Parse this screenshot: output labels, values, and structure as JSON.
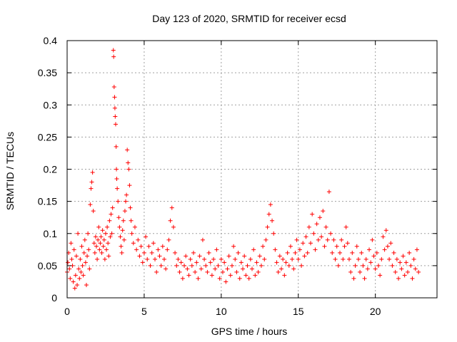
{
  "chart_data": {
    "type": "scatter",
    "title": "Day 123 of 2020, SRMTID for receiver ecsd",
    "xlabel": "GPS time / hours",
    "ylabel": "SRMTID / TECUs",
    "xlim": [
      0,
      24
    ],
    "ylim": [
      0,
      0.4
    ],
    "x_ticks": [
      0,
      5,
      10,
      15,
      20
    ],
    "x_tick_labels": [
      "0",
      "5",
      "10",
      "15",
      "20"
    ],
    "y_ticks": [
      0,
      0.05,
      0.1,
      0.15,
      0.2,
      0.25,
      0.3,
      0.35,
      0.4
    ],
    "y_tick_labels": [
      "0",
      "0.05",
      "0.1",
      "0.15",
      "0.2",
      "0.25",
      "0.3",
      "0.35",
      "0.4"
    ],
    "grid": true,
    "marker": "+",
    "series": [
      {
        "name": "SRMTID",
        "color": "#ff0000",
        "points": [
          [
            0.0,
            0.04
          ],
          [
            0.05,
            0.055
          ],
          [
            0.1,
            0.07
          ],
          [
            0.15,
            0.045
          ],
          [
            0.2,
            0.03
          ],
          [
            0.25,
            0.085
          ],
          [
            0.3,
            0.06
          ],
          [
            0.35,
            0.05
          ],
          [
            0.4,
            0.025
          ],
          [
            0.45,
            0.075
          ],
          [
            0.5,
            0.015
          ],
          [
            0.55,
            0.035
          ],
          [
            0.6,
            0.065
          ],
          [
            0.65,
            0.02
          ],
          [
            0.7,
            0.1
          ],
          [
            0.75,
            0.045
          ],
          [
            0.8,
            0.03
          ],
          [
            0.85,
            0.06
          ],
          [
            0.9,
            0.04
          ],
          [
            0.95,
            0.08
          ],
          [
            1.0,
            0.05
          ],
          [
            1.05,
            0.035
          ],
          [
            1.1,
            0.07
          ],
          [
            1.15,
            0.09
          ],
          [
            1.2,
            0.055
          ],
          [
            1.25,
            0.02
          ],
          [
            1.3,
            0.065
          ],
          [
            1.35,
            0.1
          ],
          [
            1.4,
            0.075
          ],
          [
            1.45,
            0.045
          ],
          [
            1.5,
            0.145
          ],
          [
            1.55,
            0.17
          ],
          [
            1.6,
            0.18
          ],
          [
            1.65,
            0.195
          ],
          [
            1.7,
            0.135
          ],
          [
            1.75,
            0.085
          ],
          [
            1.8,
            0.07
          ],
          [
            1.85,
            0.095
          ],
          [
            1.9,
            0.08
          ],
          [
            1.95,
            0.06
          ],
          [
            2.0,
            0.09
          ],
          [
            2.05,
            0.11
          ],
          [
            2.1,
            0.075
          ],
          [
            2.15,
            0.085
          ],
          [
            2.2,
            0.095
          ],
          [
            2.25,
            0.07
          ],
          [
            2.3,
            0.105
          ],
          [
            2.35,
            0.08
          ],
          [
            2.4,
            0.09
          ],
          [
            2.45,
            0.06
          ],
          [
            2.5,
            0.1
          ],
          [
            2.55,
            0.075
          ],
          [
            2.6,
            0.11
          ],
          [
            2.65,
            0.085
          ],
          [
            2.7,
            0.065
          ],
          [
            2.75,
            0.12
          ],
          [
            2.8,
            0.095
          ],
          [
            2.85,
            0.13
          ],
          [
            2.9,
            0.1
          ],
          [
            2.95,
            0.14
          ],
          [
            3.0,
            0.385
          ],
          [
            3.02,
            0.375
          ],
          [
            3.05,
            0.328
          ],
          [
            3.08,
            0.312
          ],
          [
            3.1,
            0.295
          ],
          [
            3.12,
            0.282
          ],
          [
            3.15,
            0.27
          ],
          [
            3.18,
            0.235
          ],
          [
            3.2,
            0.2
          ],
          [
            3.22,
            0.185
          ],
          [
            3.25,
            0.17
          ],
          [
            3.3,
            0.15
          ],
          [
            3.35,
            0.125
          ],
          [
            3.4,
            0.11
          ],
          [
            3.45,
            0.095
          ],
          [
            3.5,
            0.08
          ],
          [
            3.55,
            0.07
          ],
          [
            3.6,
            0.105
          ],
          [
            3.65,
            0.12
          ],
          [
            3.7,
            0.09
          ],
          [
            3.75,
            0.135
          ],
          [
            3.8,
            0.15
          ],
          [
            3.85,
            0.16
          ],
          [
            3.9,
            0.23
          ],
          [
            3.95,
            0.21
          ],
          [
            4.0,
            0.2
          ],
          [
            4.05,
            0.175
          ],
          [
            4.1,
            0.14
          ],
          [
            4.15,
            0.12
          ],
          [
            4.2,
            0.1
          ],
          [
            4.3,
            0.085
          ],
          [
            4.4,
            0.11
          ],
          [
            4.5,
            0.075
          ],
          [
            4.6,
            0.09
          ],
          [
            4.7,
            0.065
          ],
          [
            4.8,
            0.08
          ],
          [
            4.9,
            0.055
          ],
          [
            5.0,
            0.07
          ],
          [
            5.1,
            0.095
          ],
          [
            5.2,
            0.06
          ],
          [
            5.3,
            0.08
          ],
          [
            5.4,
            0.05
          ],
          [
            5.5,
            0.07
          ],
          [
            5.6,
            0.085
          ],
          [
            5.7,
            0.06
          ],
          [
            5.8,
            0.04
          ],
          [
            5.9,
            0.075
          ],
          [
            6.0,
            0.065
          ],
          [
            6.1,
            0.05
          ],
          [
            6.2,
            0.08
          ],
          [
            6.3,
            0.06
          ],
          [
            6.4,
            0.045
          ],
          [
            6.5,
            0.075
          ],
          [
            6.6,
            0.09
          ],
          [
            6.7,
            0.12
          ],
          [
            6.8,
            0.14
          ],
          [
            6.9,
            0.11
          ],
          [
            7.0,
            0.07
          ],
          [
            7.1,
            0.05
          ],
          [
            7.2,
            0.06
          ],
          [
            7.3,
            0.04
          ],
          [
            7.4,
            0.055
          ],
          [
            7.5,
            0.03
          ],
          [
            7.6,
            0.05
          ],
          [
            7.7,
            0.065
          ],
          [
            7.8,
            0.045
          ],
          [
            7.9,
            0.035
          ],
          [
            8.0,
            0.06
          ],
          [
            8.1,
            0.05
          ],
          [
            8.2,
            0.07
          ],
          [
            8.3,
            0.04
          ],
          [
            8.4,
            0.055
          ],
          [
            8.5,
            0.03
          ],
          [
            8.6,
            0.065
          ],
          [
            8.7,
            0.045
          ],
          [
            8.8,
            0.09
          ],
          [
            8.9,
            0.06
          ],
          [
            9.0,
            0.05
          ],
          [
            9.1,
            0.04
          ],
          [
            9.2,
            0.07
          ],
          [
            9.3,
            0.055
          ],
          [
            9.4,
            0.035
          ],
          [
            9.5,
            0.06
          ],
          [
            9.6,
            0.045
          ],
          [
            9.7,
            0.075
          ],
          [
            9.8,
            0.05
          ],
          [
            9.9,
            0.03
          ],
          [
            10.0,
            0.06
          ],
          [
            10.1,
            0.04
          ],
          [
            10.2,
            0.055
          ],
          [
            10.3,
            0.025
          ],
          [
            10.4,
            0.045
          ],
          [
            10.5,
            0.065
          ],
          [
            10.6,
            0.035
          ],
          [
            10.7,
            0.05
          ],
          [
            10.8,
            0.08
          ],
          [
            10.9,
            0.06
          ],
          [
            11.0,
            0.04
          ],
          [
            11.1,
            0.07
          ],
          [
            11.2,
            0.03
          ],
          [
            11.3,
            0.055
          ],
          [
            11.4,
            0.045
          ],
          [
            11.5,
            0.065
          ],
          [
            11.6,
            0.035
          ],
          [
            11.7,
            0.05
          ],
          [
            11.8,
            0.03
          ],
          [
            11.9,
            0.06
          ],
          [
            12.0,
            0.045
          ],
          [
            12.1,
            0.075
          ],
          [
            12.2,
            0.035
          ],
          [
            12.3,
            0.055
          ],
          [
            12.4,
            0.04
          ],
          [
            12.5,
            0.065
          ],
          [
            12.6,
            0.05
          ],
          [
            12.7,
            0.08
          ],
          [
            12.8,
            0.06
          ],
          [
            12.9,
            0.09
          ],
          [
            13.0,
            0.11
          ],
          [
            13.1,
            0.13
          ],
          [
            13.2,
            0.145
          ],
          [
            13.3,
            0.12
          ],
          [
            13.4,
            0.1
          ],
          [
            13.5,
            0.075
          ],
          [
            13.6,
            0.055
          ],
          [
            13.7,
            0.04
          ],
          [
            13.8,
            0.065
          ],
          [
            13.9,
            0.045
          ],
          [
            14.0,
            0.06
          ],
          [
            14.1,
            0.035
          ],
          [
            14.2,
            0.055
          ],
          [
            14.3,
            0.07
          ],
          [
            14.4,
            0.05
          ],
          [
            14.5,
            0.08
          ],
          [
            14.6,
            0.06
          ],
          [
            14.7,
            0.045
          ],
          [
            14.8,
            0.07
          ],
          [
            14.9,
            0.09
          ],
          [
            15.0,
            0.06
          ],
          [
            15.1,
            0.075
          ],
          [
            15.2,
            0.05
          ],
          [
            15.3,
            0.085
          ],
          [
            15.4,
            0.065
          ],
          [
            15.5,
            0.095
          ],
          [
            15.6,
            0.07
          ],
          [
            15.7,
            0.11
          ],
          [
            15.8,
            0.085
          ],
          [
            15.9,
            0.13
          ],
          [
            16.0,
            0.1
          ],
          [
            16.1,
            0.075
          ],
          [
            16.2,
            0.115
          ],
          [
            16.3,
            0.09
          ],
          [
            16.4,
            0.125
          ],
          [
            16.5,
            0.095
          ],
          [
            16.6,
            0.135
          ],
          [
            16.7,
            0.08
          ],
          [
            16.8,
            0.11
          ],
          [
            16.9,
            0.09
          ],
          [
            17.0,
            0.165
          ],
          [
            17.1,
            0.1
          ],
          [
            17.2,
            0.07
          ],
          [
            17.3,
            0.09
          ],
          [
            17.4,
            0.06
          ],
          [
            17.5,
            0.08
          ],
          [
            17.6,
            0.05
          ],
          [
            17.7,
            0.07
          ],
          [
            17.8,
            0.09
          ],
          [
            17.9,
            0.06
          ],
          [
            18.0,
            0.08
          ],
          [
            18.1,
            0.11
          ],
          [
            18.2,
            0.085
          ],
          [
            18.3,
            0.06
          ],
          [
            18.4,
            0.04
          ],
          [
            18.5,
            0.07
          ],
          [
            18.6,
            0.03
          ],
          [
            18.7,
            0.05
          ],
          [
            18.8,
            0.08
          ],
          [
            18.9,
            0.06
          ],
          [
            19.0,
            0.04
          ],
          [
            19.1,
            0.07
          ],
          [
            19.2,
            0.05
          ],
          [
            19.3,
            0.03
          ],
          [
            19.4,
            0.06
          ],
          [
            19.5,
            0.045
          ],
          [
            19.6,
            0.075
          ],
          [
            19.7,
            0.055
          ],
          [
            19.8,
            0.09
          ],
          [
            19.9,
            0.065
          ],
          [
            20.0,
            0.045
          ],
          [
            20.1,
            0.07
          ],
          [
            20.2,
            0.05
          ],
          [
            20.3,
            0.035
          ],
          [
            20.4,
            0.06
          ],
          [
            20.5,
            0.095
          ],
          [
            20.6,
            0.075
          ],
          [
            20.7,
            0.105
          ],
          [
            20.8,
            0.08
          ],
          [
            20.9,
            0.06
          ],
          [
            21.0,
            0.085
          ],
          [
            21.1,
            0.05
          ],
          [
            21.2,
            0.07
          ],
          [
            21.3,
            0.04
          ],
          [
            21.4,
            0.06
          ],
          [
            21.5,
            0.03
          ],
          [
            21.6,
            0.055
          ],
          [
            21.7,
            0.045
          ],
          [
            21.8,
            0.065
          ],
          [
            21.9,
            0.035
          ],
          [
            22.0,
            0.055
          ],
          [
            22.1,
            0.04
          ],
          [
            22.2,
            0.07
          ],
          [
            22.3,
            0.05
          ],
          [
            22.4,
            0.03
          ],
          [
            22.5,
            0.06
          ],
          [
            22.6,
            0.045
          ],
          [
            22.7,
            0.075
          ],
          [
            22.8,
            0.04
          ]
        ]
      }
    ]
  }
}
